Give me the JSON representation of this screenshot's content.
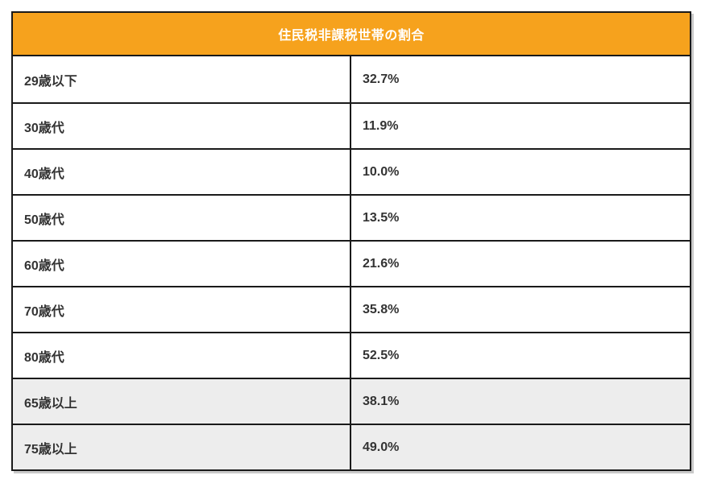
{
  "table": {
    "title": "住民税非課税世帯の割合",
    "rows": [
      {
        "label": "29歳以下",
        "value": "32.7%",
        "highlight": false
      },
      {
        "label": "30歳代",
        "value": "11.9%",
        "highlight": false
      },
      {
        "label": "40歳代",
        "value": "10.0%",
        "highlight": false
      },
      {
        "label": "50歳代",
        "value": "13.5%",
        "highlight": false
      },
      {
        "label": "60歳代",
        "value": "21.6%",
        "highlight": false
      },
      {
        "label": "70歳代",
        "value": "35.8%",
        "highlight": false
      },
      {
        "label": "80歳代",
        "value": "52.5%",
        "highlight": false
      },
      {
        "label": "65歳以上",
        "value": "38.1%",
        "highlight": true
      },
      {
        "label": "75歳以上",
        "value": "49.0%",
        "highlight": true
      }
    ]
  },
  "colors": {
    "header_bg": "#f6a21d",
    "header_text": "#ffffff",
    "border": "#1a1a1a",
    "text": "#333333",
    "row_bg": "#ffffff",
    "highlight_row_bg": "#ededed",
    "shadow": "#c9c9c9"
  },
  "chart_data": {
    "type": "table",
    "title": "住民税非課税世帯の割合",
    "categories": [
      "29歳以下",
      "30歳代",
      "40歳代",
      "50歳代",
      "60歳代",
      "70歳代",
      "80歳代",
      "65歳以上",
      "75歳以上"
    ],
    "values": [
      32.7,
      11.9,
      10.0,
      13.5,
      21.6,
      35.8,
      52.5,
      38.1,
      49.0
    ],
    "unit": "%",
    "highlighted_categories": [
      "65歳以上",
      "75歳以上"
    ],
    "legend_position": "none",
    "notes": "title bar spans both columns; last two rows shaded as summary rows"
  }
}
